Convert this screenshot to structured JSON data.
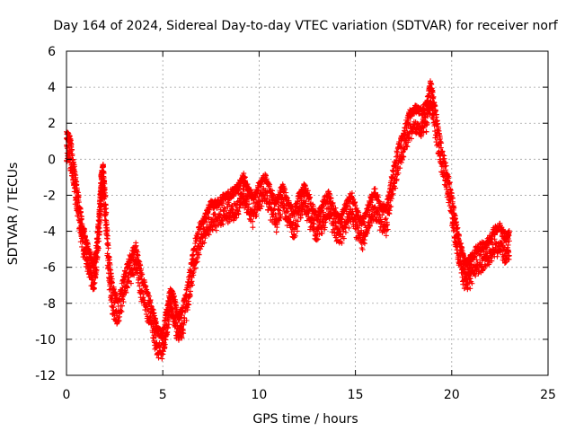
{
  "chart_data": {
    "type": "scatter",
    "title": "Day 164 of 2024, Sidereal Day-to-day VTEC variation (SDTVAR) for receiver norf",
    "xlabel": "GPS time / hours",
    "ylabel": "SDTVAR / TECUs",
    "xlim": [
      0,
      25
    ],
    "ylim": [
      -12,
      6
    ],
    "xticks": [
      0,
      5,
      10,
      15,
      20,
      25
    ],
    "yticks": [
      -12,
      -10,
      -8,
      -6,
      -4,
      -2,
      0,
      2,
      4,
      6
    ],
    "grid": true,
    "marker": "+",
    "colors": {
      "series": "#ff0000",
      "grid": "#a0a0a0",
      "axis": "#000000"
    },
    "series": [
      {
        "name": "SDTVAR",
        "trend": [
          [
            0.0,
            1.4
          ],
          [
            0.2,
            1.0
          ],
          [
            0.4,
            -0.5
          ],
          [
            0.6,
            -2.0
          ],
          [
            0.8,
            -3.5
          ],
          [
            1.0,
            -4.5
          ],
          [
            1.2,
            -5.2
          ],
          [
            1.4,
            -6.0
          ],
          [
            1.55,
            -5.0
          ],
          [
            1.7,
            -3.0
          ],
          [
            1.8,
            -1.0
          ],
          [
            1.9,
            -0.4
          ],
          [
            2.0,
            -2.0
          ],
          [
            2.2,
            -5.5
          ],
          [
            2.4,
            -7.2
          ],
          [
            2.7,
            -8.0
          ],
          [
            3.0,
            -6.5
          ],
          [
            3.3,
            -5.5
          ],
          [
            3.6,
            -4.8
          ],
          [
            3.9,
            -6.5
          ],
          [
            4.2,
            -7.5
          ],
          [
            4.5,
            -8.5
          ],
          [
            4.7,
            -9.5
          ],
          [
            5.0,
            -9.8
          ],
          [
            5.2,
            -8.5
          ],
          [
            5.4,
            -7.3
          ],
          [
            5.6,
            -7.8
          ],
          [
            5.8,
            -8.8
          ],
          [
            6.0,
            -8.5
          ],
          [
            6.3,
            -7.0
          ],
          [
            6.6,
            -5.0
          ],
          [
            6.9,
            -3.8
          ],
          [
            7.2,
            -3.2
          ],
          [
            7.5,
            -2.5
          ],
          [
            7.8,
            -2.5
          ],
          [
            8.1,
            -2.2
          ],
          [
            8.4,
            -2.0
          ],
          [
            8.7,
            -1.8
          ],
          [
            9.0,
            -1.4
          ],
          [
            9.2,
            -1.0
          ],
          [
            9.4,
            -1.6
          ],
          [
            9.7,
            -2.2
          ],
          [
            10.0,
            -1.5
          ],
          [
            10.3,
            -1.0
          ],
          [
            10.6,
            -1.8
          ],
          [
            10.9,
            -2.5
          ],
          [
            11.2,
            -1.5
          ],
          [
            11.5,
            -2.4
          ],
          [
            11.8,
            -3.0
          ],
          [
            12.1,
            -2.0
          ],
          [
            12.4,
            -1.5
          ],
          [
            12.7,
            -2.5
          ],
          [
            13.0,
            -3.2
          ],
          [
            13.3,
            -2.5
          ],
          [
            13.6,
            -2.0
          ],
          [
            13.9,
            -2.8
          ],
          [
            14.2,
            -3.4
          ],
          [
            14.5,
            -2.6
          ],
          [
            14.8,
            -2.0
          ],
          [
            15.1,
            -3.0
          ],
          [
            15.4,
            -3.5
          ],
          [
            15.7,
            -2.5
          ],
          [
            16.0,
            -1.8
          ],
          [
            16.3,
            -2.6
          ],
          [
            16.6,
            -2.8
          ],
          [
            16.9,
            -1.0
          ],
          [
            17.2,
            0.5
          ],
          [
            17.5,
            1.5
          ],
          [
            17.8,
            2.5
          ],
          [
            18.1,
            2.8
          ],
          [
            18.4,
            2.6
          ],
          [
            18.7,
            3.0
          ],
          [
            18.9,
            4.2
          ],
          [
            19.1,
            3.0
          ],
          [
            19.4,
            1.0
          ],
          [
            19.7,
            -0.5
          ],
          [
            20.0,
            -2.0
          ],
          [
            20.2,
            -3.5
          ],
          [
            20.4,
            -4.5
          ],
          [
            20.6,
            -5.5
          ],
          [
            20.8,
            -5.8
          ],
          [
            21.0,
            -5.5
          ],
          [
            21.3,
            -5.0
          ],
          [
            21.6,
            -4.8
          ],
          [
            21.9,
            -4.6
          ],
          [
            22.2,
            -4.0
          ],
          [
            22.5,
            -3.8
          ],
          [
            22.8,
            -4.4
          ],
          [
            23.0,
            -4.2
          ]
        ],
        "spread": 1.4
      }
    ]
  }
}
